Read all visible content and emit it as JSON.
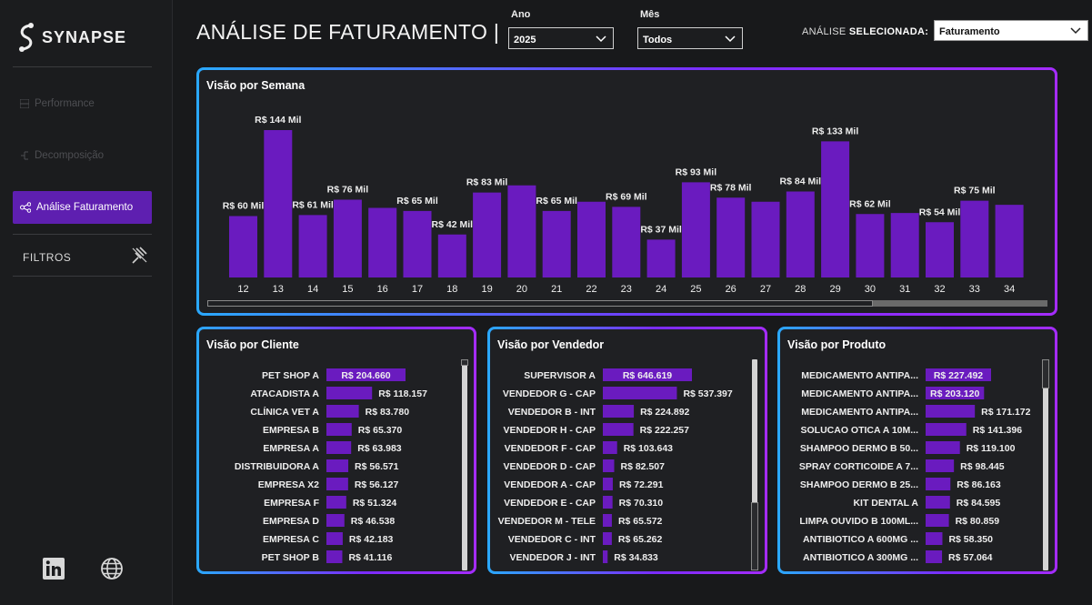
{
  "brand": {
    "name": "SYNAPSE"
  },
  "nav": {
    "items": [
      {
        "label": "Performance",
        "active": false
      },
      {
        "label": "Decomposição",
        "active": false
      },
      {
        "label": "Análise Faturamento",
        "active": true
      }
    ],
    "filters_label": "FILTROS"
  },
  "header": {
    "title": "ANÁLISE DE FATURAMENTO |",
    "year_label": "Ano",
    "year_value": "2025",
    "month_label": "Mês",
    "month_value": "Todos",
    "analysis_label_prefix": "ANÁLISE ",
    "analysis_label_bold": "SELECIONADA:",
    "analysis_value": "Faturamento"
  },
  "colors": {
    "bar": "#6a1bbf",
    "accent": "#5e1fb0",
    "border_start": "#2aa9ff",
    "border_end": "#a52cff"
  },
  "chart_data": [
    {
      "type": "bar",
      "title": "Visão por Semana",
      "categories": [
        "12",
        "13",
        "14",
        "15",
        "16",
        "17",
        "18",
        "19",
        "20",
        "21",
        "22",
        "23",
        "24",
        "25",
        "26",
        "27",
        "28",
        "29",
        "30",
        "31",
        "32",
        "33",
        "34"
      ],
      "values": [
        60,
        144,
        61,
        76,
        68,
        65,
        42,
        83,
        90,
        65,
        74,
        69,
        37,
        93,
        78,
        74,
        84,
        133,
        62,
        63,
        54,
        75,
        71
      ],
      "data_labels": [
        "R$ 60 Mil",
        "R$ 144 Mil",
        "R$ 61 Mil",
        "R$ 76 Mil",
        "",
        "R$ 65 Mil",
        "R$ 42 Mil",
        "R$ 83 Mil",
        "",
        "R$ 65 Mil",
        "",
        "R$ 69 Mil",
        "R$ 37 Mil",
        "R$ 93 Mil",
        "R$ 78 Mil",
        "",
        "R$ 84 Mil",
        "R$ 133 Mil",
        "R$ 62 Mil",
        "",
        "R$ 54 Mil",
        "R$ 75 Mil",
        ""
      ],
      "ylim": [
        0,
        150
      ]
    },
    {
      "type": "bar",
      "orientation": "horizontal",
      "title": "Visão por Cliente",
      "categories": [
        "PET SHOP A",
        "ATACADISTA A",
        "CLÍNICA VET A",
        "EMPRESA B",
        "EMPRESA A",
        "DISTRIBUIDORA A",
        "EMPRESA X2",
        "EMPRESA F",
        "EMPRESA D",
        "EMPRESA C",
        "PET SHOP B"
      ],
      "values": [
        204660,
        118157,
        83780,
        65370,
        63983,
        56571,
        56127,
        51324,
        46538,
        42183,
        41116
      ],
      "labels": [
        "R$ 204.660",
        "R$ 118.157",
        "R$ 83.780",
        "R$ 65.370",
        "R$ 63.983",
        "R$ 56.571",
        "R$ 56.127",
        "R$ 51.324",
        "R$ 46.538",
        "R$ 42.183",
        "R$ 41.116"
      ]
    },
    {
      "type": "bar",
      "orientation": "horizontal",
      "title": "Visão por Vendedor",
      "categories": [
        "SUPERVISOR A",
        "VENDEDOR G - CAP",
        "VENDEDOR B - INT",
        "VENDEDOR H - CAP",
        "VENDEDOR F - CAP",
        "VENDEDOR D - CAP",
        "VENDEDOR A - CAP",
        "VENDEDOR E - CAP",
        "VENDEDOR M - TELE",
        "VENDEDOR C - INT",
        "VENDEDOR J - INT"
      ],
      "values": [
        646619,
        537397,
        224892,
        222257,
        103643,
        82507,
        72291,
        70310,
        65572,
        65262,
        34833
      ],
      "labels": [
        "R$ 646.619",
        "R$ 537.397",
        "R$ 224.892",
        "R$ 222.257",
        "R$ 103.643",
        "R$ 82.507",
        "R$ 72.291",
        "R$ 70.310",
        "R$ 65.572",
        "R$ 65.262",
        "R$ 34.833"
      ]
    },
    {
      "type": "bar",
      "orientation": "horizontal",
      "title": "Visão por Produto",
      "categories": [
        "MEDICAMENTO ANTIPA...",
        "MEDICAMENTO ANTIPA...",
        "MEDICAMENTO ANTIPA...",
        "SOLUCAO OTICA A 10M...",
        "SHAMPOO DERMO B 50...",
        "SPRAY CORTICOIDE A 7...",
        "SHAMPOO DERMO B 25...",
        "KIT DENTAL A",
        "LIMPA OUVIDO B 100ML...",
        "ANTIBIOTICO A 600MG ...",
        "ANTIBIOTICO A 300MG ..."
      ],
      "values": [
        227492,
        203120,
        171172,
        141396,
        119100,
        98445,
        86163,
        84595,
        80859,
        58350,
        57064
      ],
      "labels": [
        "R$ 227.492",
        "R$ 203.120",
        "R$ 171.172",
        "R$ 141.396",
        "R$ 119.100",
        "R$ 98.445",
        "R$ 86.163",
        "R$ 84.595",
        "R$ 80.859",
        "R$ 58.350",
        "R$ 57.064"
      ]
    }
  ]
}
